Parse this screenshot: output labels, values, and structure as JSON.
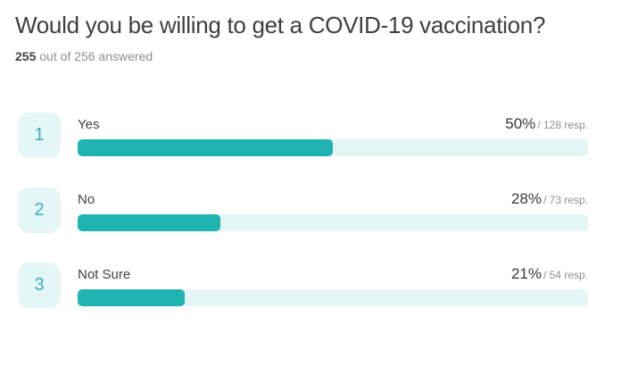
{
  "header": {
    "title": "Would you be willing to get a COVID-19 vaccination?",
    "answered_count": "255",
    "answered_suffix": " out of 256 answered"
  },
  "colors": {
    "bar_fill": "#1fb4b1",
    "bar_track": "#e3f5f4",
    "badge_bg": "#e5f6f7",
    "badge_text": "#38b0bd",
    "title_text": "#3f3f3f",
    "muted_text": "#8e8e8e"
  },
  "options": [
    {
      "rank": "1",
      "label": "Yes",
      "percent": "50%",
      "resp": "/ 128 resp.",
      "value": 50
    },
    {
      "rank": "2",
      "label": "No",
      "percent": "28%",
      "resp": "/ 73 resp.",
      "value": 28
    },
    {
      "rank": "3",
      "label": "Not Sure",
      "percent": "21%",
      "resp": "/ 54 resp.",
      "value": 21
    }
  ],
  "chart_data": {
    "type": "bar",
    "orientation": "horizontal",
    "title": "Would you be willing to get a COVID-19 vaccination?",
    "categories": [
      "Yes",
      "No",
      "Not Sure"
    ],
    "values": [
      50,
      28,
      21
    ],
    "value_unit": "percent",
    "respondents": [
      128,
      73,
      54
    ],
    "total_answered": 255,
    "total_participants": 256,
    "xlim": [
      0,
      100
    ],
    "grid": false,
    "legend": false
  }
}
